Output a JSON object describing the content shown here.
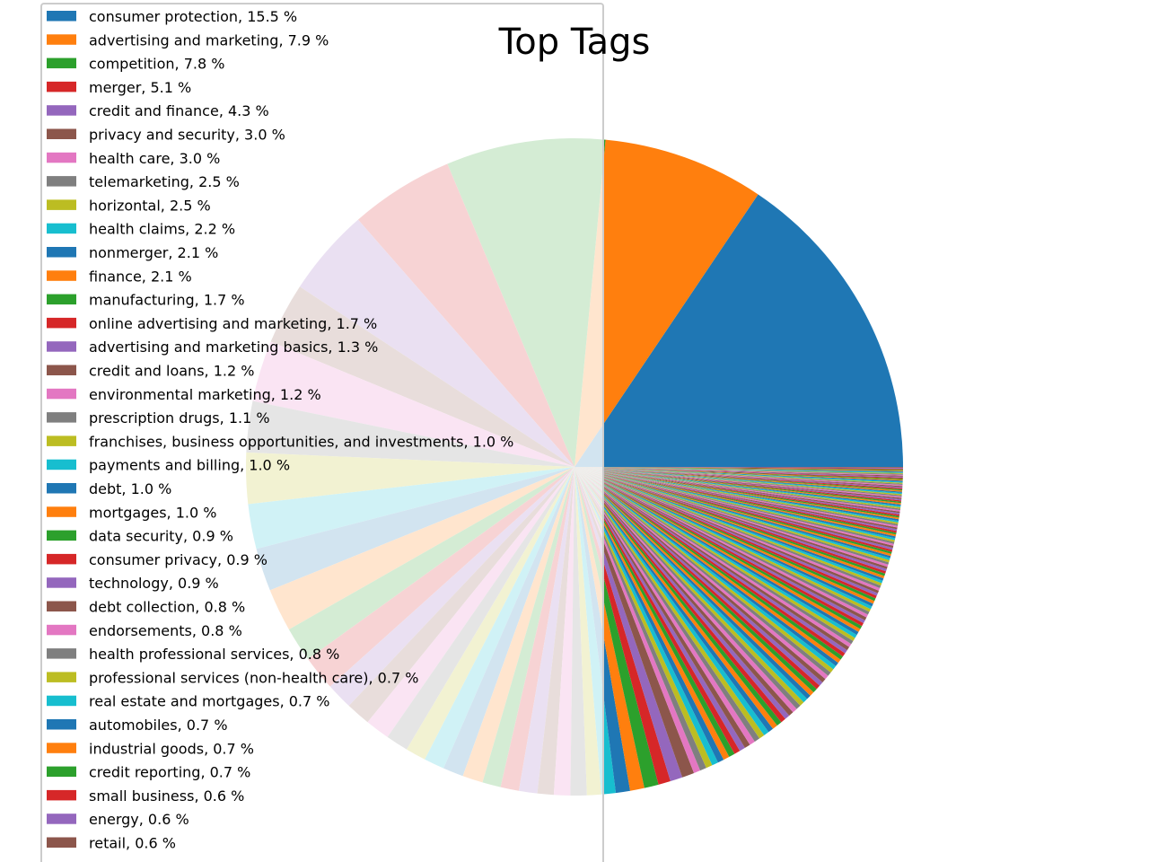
{
  "chart_data": {
    "type": "pie",
    "title": "Top Tags",
    "legend_position": "upper-left",
    "label_format": "{label}, {pct} %",
    "palette": [
      "#1f77b4",
      "#ff7f0e",
      "#2ca02c",
      "#d62728",
      "#9467bd",
      "#8c564b",
      "#e377c2",
      "#7f7f7f",
      "#bcbd22",
      "#17becf"
    ],
    "labels": [
      "consumer protection",
      "advertising and marketing",
      "competition",
      "merger",
      "credit and finance",
      "privacy and security",
      "health care",
      "telemarketing",
      "horizontal",
      "health claims",
      "nonmerger",
      "finance",
      "manufacturing",
      "online advertising and marketing",
      "advertising and marketing basics",
      "credit and loans",
      "environmental marketing",
      "prescription drugs",
      "franchises, business opportunities, and investments",
      "payments and billing",
      "debt",
      "mortgages",
      "data security",
      "consumer privacy",
      "technology",
      "debt collection",
      "endorsements",
      "health professional services",
      "professional services (non-health care)",
      "real estate and mortgages",
      "automobiles",
      "industrial goods",
      "credit reporting",
      "small business",
      "energy",
      "retail"
    ],
    "values": [
      15.5,
      7.9,
      7.8,
      5.1,
      4.3,
      3.0,
      3.0,
      2.5,
      2.5,
      2.2,
      2.1,
      2.1,
      1.7,
      1.7,
      1.3,
      1.2,
      1.2,
      1.1,
      1.0,
      1.0,
      1.0,
      1.0,
      0.9,
      0.9,
      0.9,
      0.8,
      0.8,
      0.8,
      0.7,
      0.7,
      0.7,
      0.7,
      0.7,
      0.6,
      0.6,
      0.6
    ],
    "pct_labels": [
      "15.5",
      "7.9",
      "7.8",
      "5.1",
      "4.3",
      "3.0",
      "3.0",
      "2.5",
      "2.5",
      "2.2",
      "2.1",
      "2.1",
      "1.7",
      "1.7",
      "1.3",
      "1.2",
      "1.2",
      "1.1",
      "1.0",
      "1.0",
      "1.0",
      "1.0",
      "0.9",
      "0.9",
      "0.9",
      "0.8",
      "0.8",
      "0.8",
      "0.7",
      "0.7",
      "0.7",
      "0.7",
      "0.7",
      "0.6",
      "0.6",
      "0.6"
    ],
    "remainder_categories": 140,
    "remainder_total": 19.0
  }
}
